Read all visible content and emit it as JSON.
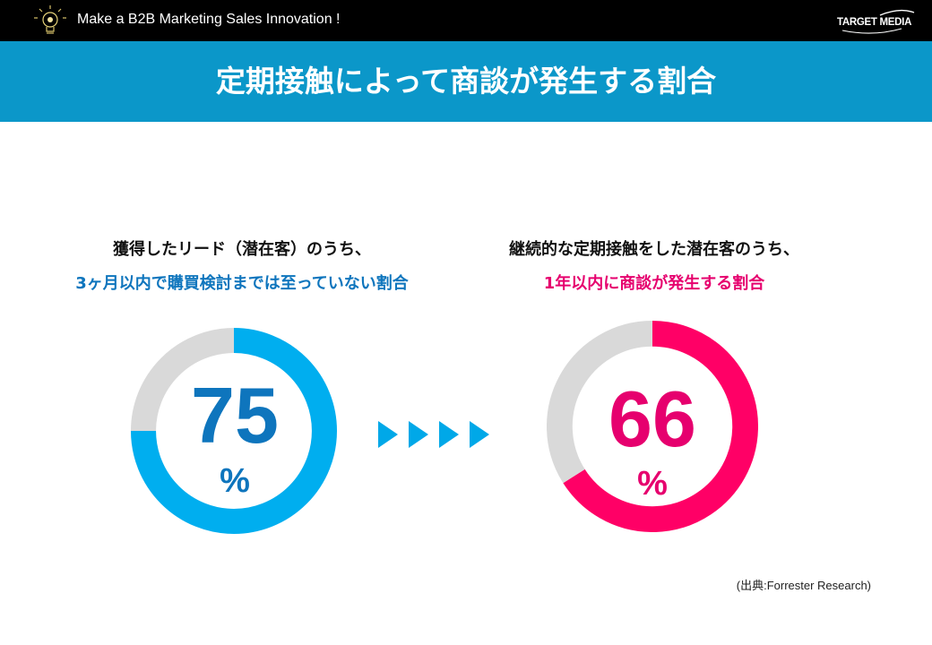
{
  "header": {
    "tagline": "Make a B2B Marketing Sales Innovation !",
    "logo_text": "TARGET MEDIA",
    "title": "定期接触によって商談が発生する割合"
  },
  "left": {
    "line1": "獲得したリード（潜在客）のうち、",
    "line2": "3ヶ月以内で購買検討までは至っていない割合",
    "value": "75",
    "unit": "%"
  },
  "right": {
    "line1": "継続的な定期接触をした潜在客のうち、",
    "line2": "1年以内に商談が発生する割合",
    "value": "66",
    "unit": "%"
  },
  "source": "(出典:Forrester Research)",
  "colors": {
    "title_bar": "#0b97c9",
    "left_ring": "#00aeef",
    "left_text": "#0e75bd",
    "right_ring": "#ff0066",
    "right_text": "#e6006e",
    "track": "#d9d9d9",
    "arrow": "#00a8e8"
  },
  "chart_data": [
    {
      "type": "pie",
      "variant": "donut",
      "values": [
        75,
        25
      ],
      "unit": "%"
    },
    {
      "type": "pie",
      "variant": "donut",
      "values": [
        66,
        34
      ],
      "unit": "%"
    }
  ]
}
